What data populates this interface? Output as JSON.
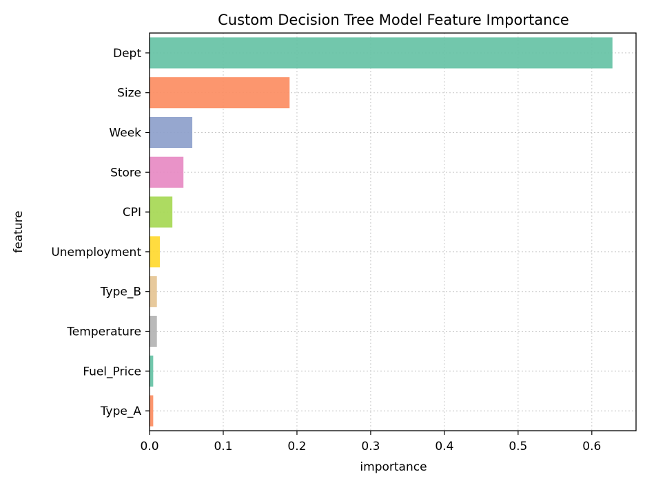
{
  "chart_data": {
    "type": "bar",
    "orientation": "horizontal",
    "title": "Custom Decision Tree Model Feature Importance",
    "xlabel": "importance",
    "ylabel": "feature",
    "xlim": [
      0,
      0.66
    ],
    "xticks": [
      0.0,
      0.1,
      0.2,
      0.3,
      0.4,
      0.5,
      0.6
    ],
    "xtick_labels": [
      "0.0",
      "0.1",
      "0.2",
      "0.3",
      "0.4",
      "0.5",
      "0.6"
    ],
    "grid": true,
    "categories": [
      "Dept",
      "Size",
      "Week",
      "Store",
      "CPI",
      "Unemployment",
      "Type_B",
      "Temperature",
      "Fuel_Price",
      "Type_A"
    ],
    "values": [
      0.628,
      0.19,
      0.058,
      0.046,
      0.031,
      0.014,
      0.01,
      0.01,
      0.005,
      0.005
    ],
    "colors": [
      "#66c2a5",
      "#fc8d62",
      "#8da0cb",
      "#e78ac3",
      "#a6d854",
      "#ffd92f",
      "#e5c494",
      "#b3b3b3",
      "#66c2a5",
      "#fc8d62"
    ]
  }
}
